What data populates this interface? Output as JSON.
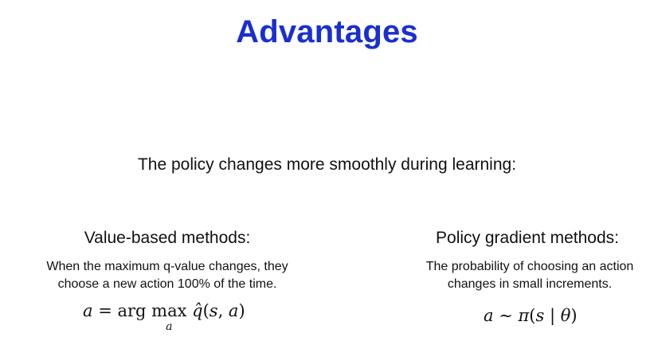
{
  "slide": {
    "title": "Advantages",
    "subtitle": "The policy changes more smoothly during learning:"
  },
  "value_based": {
    "heading": "Value-based methods:",
    "description_line1": "When the maximum q-value changes, they",
    "description_line2": "choose a new action 100% of the time."
  },
  "policy_gradient": {
    "heading": "Policy gradient methods:",
    "description_line1": "The probability of choosing an action",
    "description_line2": "changes in small increments."
  },
  "colors": {
    "title": "#1a2fd0",
    "text": "#111111",
    "background": "#ffffff"
  }
}
